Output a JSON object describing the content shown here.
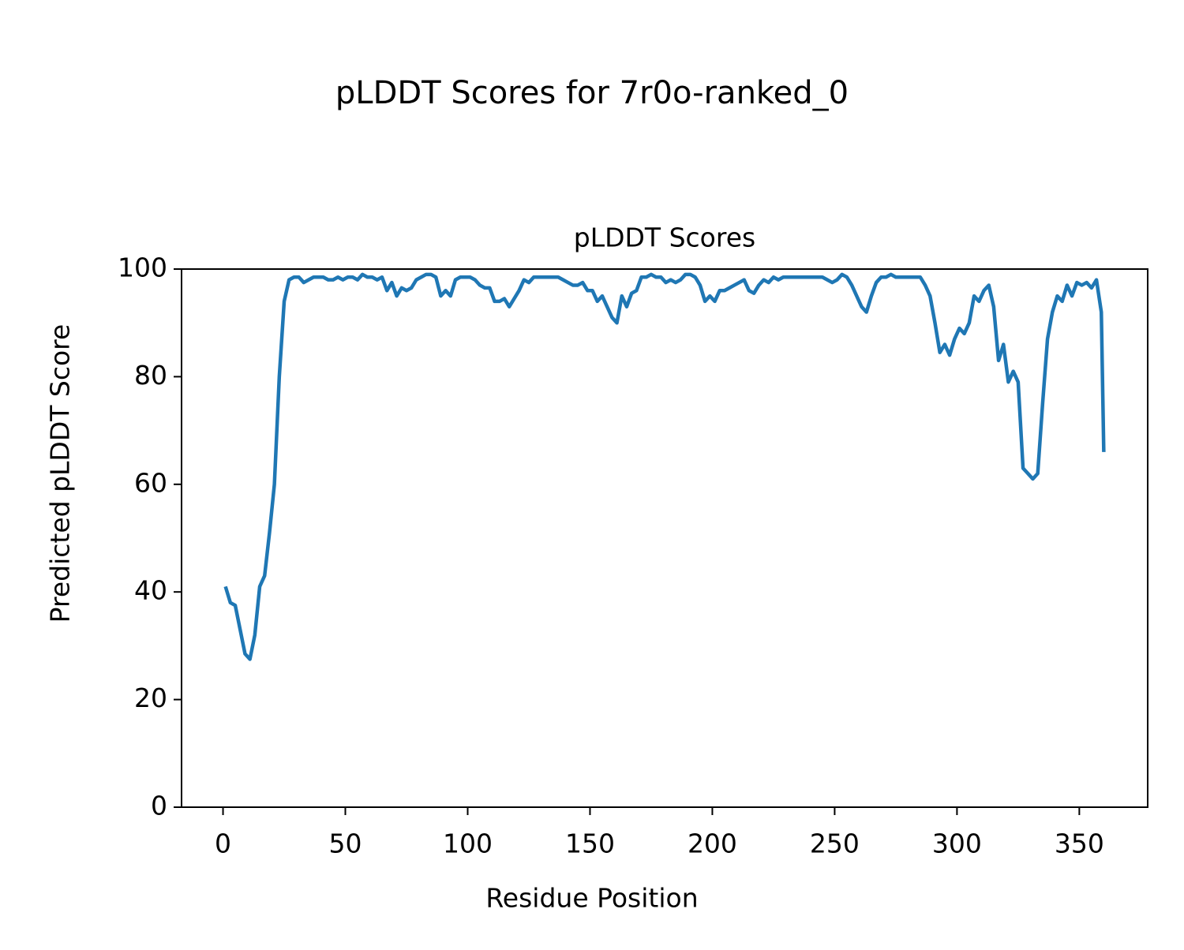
{
  "chart_data": {
    "type": "line",
    "title": "pLDDT Scores for 7r0o-ranked_0",
    "subtitle": "pLDDT Scores",
    "x_label": "Residue Position",
    "y_label": "Predicted pLDDT Score",
    "color": "#1f77b4",
    "x": [
      1,
      3,
      5,
      7,
      9,
      11,
      13,
      15,
      17,
      19,
      21,
      23,
      25,
      27,
      29,
      31,
      33,
      35,
      37,
      39,
      41,
      43,
      45,
      47,
      49,
      51,
      53,
      55,
      57,
      59,
      61,
      63,
      65,
      67,
      69,
      71,
      73,
      75,
      77,
      79,
      81,
      83,
      85,
      87,
      89,
      91,
      93,
      95,
      97,
      99,
      101,
      103,
      105,
      107,
      109,
      111,
      113,
      115,
      117,
      119,
      121,
      123,
      125,
      127,
      129,
      131,
      133,
      135,
      137,
      139,
      141,
      143,
      145,
      147,
      149,
      151,
      153,
      155,
      157,
      159,
      161,
      163,
      165,
      167,
      169,
      171,
      173,
      175,
      177,
      179,
      181,
      183,
      185,
      187,
      189,
      191,
      193,
      195,
      197,
      199,
      201,
      203,
      205,
      207,
      209,
      211,
      213,
      215,
      217,
      219,
      221,
      223,
      225,
      227,
      229,
      231,
      233,
      235,
      237,
      239,
      241,
      243,
      245,
      247,
      249,
      251,
      253,
      255,
      257,
      259,
      261,
      263,
      265,
      267,
      269,
      271,
      273,
      275,
      277,
      279,
      281,
      283,
      285,
      287,
      289,
      291,
      293,
      295,
      297,
      299,
      301,
      303,
      305,
      307,
      309,
      311,
      313,
      315,
      317,
      319,
      321,
      323,
      325,
      327,
      329,
      331,
      333,
      335,
      337,
      339,
      341,
      343,
      345,
      347,
      349,
      351,
      353,
      355,
      357,
      359,
      360
    ],
    "values": [
      41,
      38,
      37.5,
      33,
      28.5,
      27.5,
      32,
      41,
      43,
      51,
      60,
      80,
      94,
      98,
      98.5,
      98.5,
      97.5,
      98,
      98.5,
      98.5,
      98.5,
      98,
      98,
      98.5,
      98,
      98.5,
      98.5,
      98,
      99,
      98.5,
      98.5,
      98,
      98.5,
      96,
      97.5,
      95,
      96.5,
      96,
      96.5,
      98,
      98.5,
      99,
      99,
      98.5,
      95,
      96,
      95,
      98,
      98.5,
      98.5,
      98.5,
      98,
      97,
      96.5,
      96.5,
      94,
      94,
      94.5,
      93,
      94.5,
      96,
      98,
      97.5,
      98.5,
      98.5,
      98.5,
      98.5,
      98.5,
      98.5,
      98,
      97.5,
      97,
      97,
      97.5,
      96,
      96,
      94,
      95,
      93,
      91,
      90,
      95,
      93,
      95.5,
      96,
      98.5,
      98.5,
      99,
      98.5,
      98.5,
      97.5,
      98,
      97.5,
      98,
      99,
      99,
      98.5,
      97,
      94,
      95,
      94,
      96,
      96,
      96.5,
      97,
      97.5,
      98,
      96,
      95.5,
      97,
      98,
      97.5,
      98.5,
      98,
      98.5,
      98.5,
      98.5,
      98.5,
      98.5,
      98.5,
      98.5,
      98.5,
      98.5,
      98,
      97.5,
      98,
      99,
      98.5,
      97,
      95,
      93,
      92,
      95,
      97.5,
      98.5,
      98.5,
      99,
      98.5,
      98.5,
      98.5,
      98.5,
      98.5,
      98.5,
      97,
      95,
      90,
      84.5,
      86,
      84,
      87,
      89,
      88,
      90,
      95,
      94,
      96,
      97,
      93,
      83,
      86,
      79,
      81,
      79,
      63,
      62,
      61,
      62,
      75,
      87,
      92,
      95,
      94,
      97,
      95,
      97.5,
      97,
      97.5,
      96.5,
      98,
      92,
      66
    ],
    "xlim": [
      -16.95,
      377.95
    ],
    "xticks": [
      0,
      50,
      100,
      150,
      200,
      250,
      300,
      350
    ],
    "ylim": [
      0,
      100
    ],
    "yticks": [
      0,
      20,
      40,
      60,
      80,
      100
    ]
  }
}
